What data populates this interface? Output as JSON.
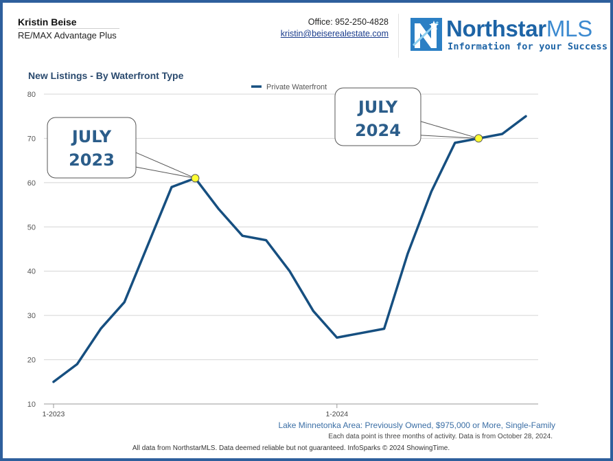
{
  "header": {
    "agent_name": "Kristin Beise",
    "company": "RE/MAX Advantage Plus",
    "office": "Office: 952-250-4828",
    "email": "kristin@beiserealestate.com"
  },
  "logo": {
    "brand_bold": "Northstar",
    "brand_light": "MLS",
    "tagline": "Information for your Success"
  },
  "footer": {
    "area_description": "Lake Minnetonka Area: Previously Owned, $975,000 or More, Single-Family",
    "note": "Each data point is three months of activity. Data is from October 28, 2024.",
    "disclaimer": "All data from NorthstarMLS. Data deemed reliable but not guaranteed. InfoSparks © 2024 ShowingTime."
  },
  "colors": {
    "line": "#164f80",
    "frame": "#2e5f9c",
    "marker_fill": "#ffff33",
    "callout_text": "#2b5d8a"
  },
  "chart_data": {
    "type": "line",
    "title": "New Listings - By Waterfront Type",
    "legend_position": "top-center",
    "grid": true,
    "x_tick_labels": [
      "1-2023",
      "1-2024"
    ],
    "x_tick_indices": [
      0,
      12
    ],
    "x_axis": {
      "start": "2023-01",
      "end": "2024-09"
    },
    "ylim": [
      10,
      80
    ],
    "yticks": [
      10,
      20,
      30,
      40,
      50,
      60,
      70,
      80
    ],
    "series": [
      {
        "name": "Private Waterfront",
        "x": [
          "2023-01",
          "2023-02",
          "2023-03",
          "2023-04",
          "2023-05",
          "2023-06",
          "2023-07",
          "2023-08",
          "2023-09",
          "2023-10",
          "2023-11",
          "2023-12",
          "2024-01",
          "2024-02",
          "2024-03",
          "2024-04",
          "2024-05",
          "2024-06",
          "2024-07",
          "2024-08",
          "2024-09"
        ],
        "values": [
          15,
          19,
          27,
          33,
          46,
          59,
          61,
          54,
          48,
          47,
          40,
          31,
          25,
          26,
          27,
          44,
          58,
          69,
          70,
          71,
          75
        ]
      }
    ],
    "annotations": [
      {
        "lines": [
          "JULY",
          "2023"
        ],
        "point": "2023-07",
        "value": 61
      },
      {
        "lines": [
          "JULY",
          "2024"
        ],
        "point": "2024-07",
        "value": 70
      }
    ]
  }
}
